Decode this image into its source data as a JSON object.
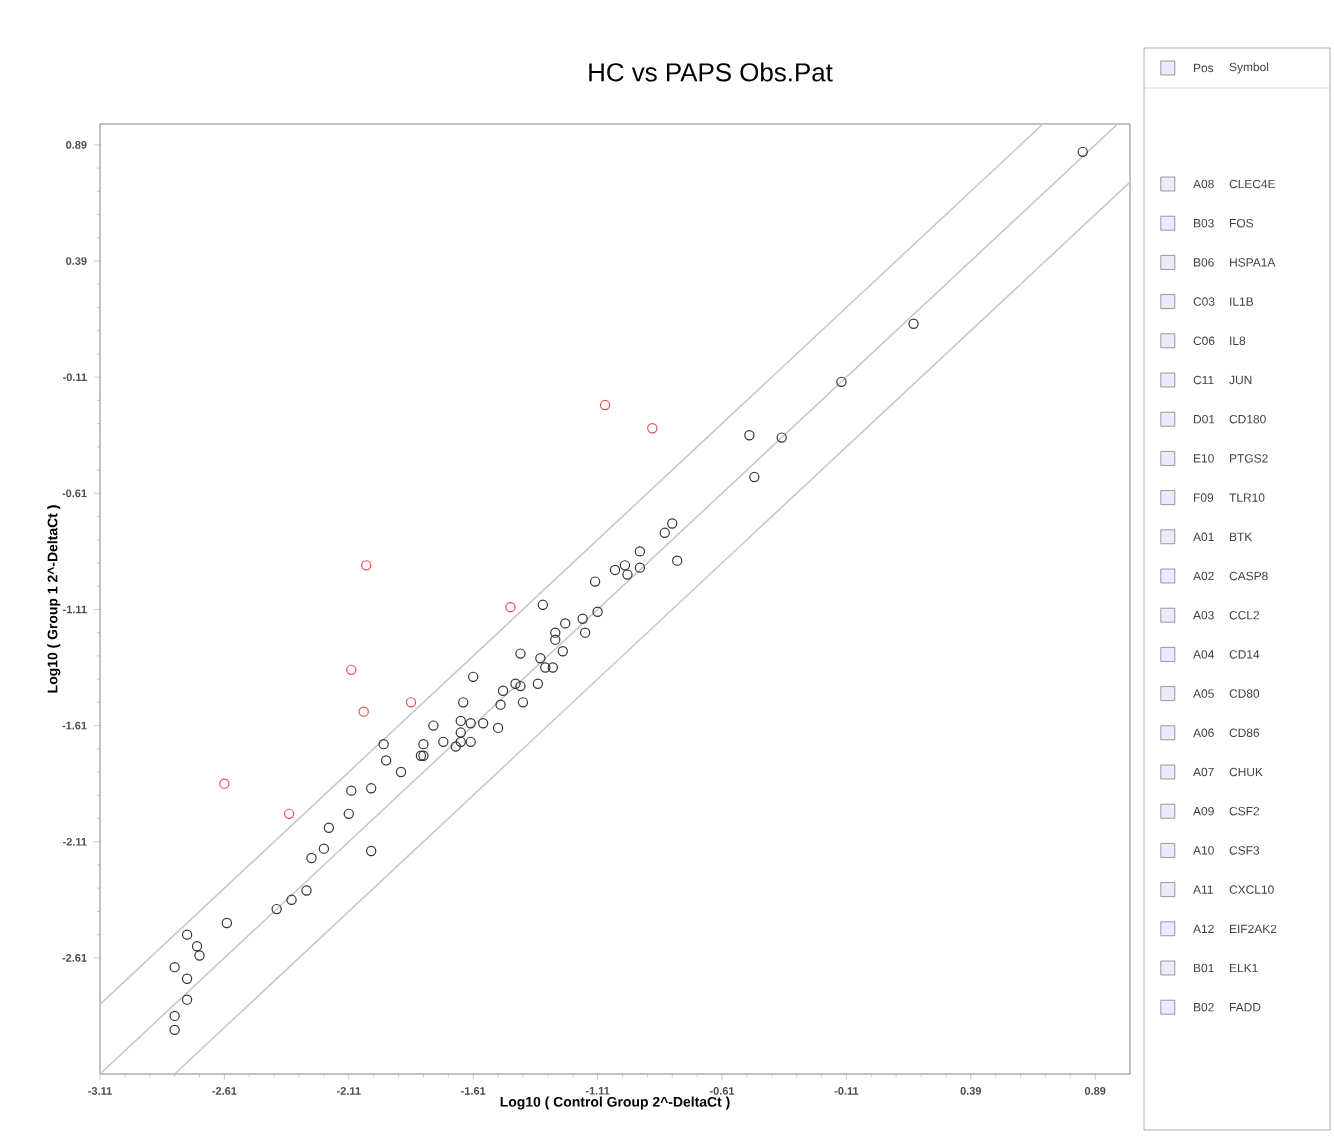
{
  "chart_data": {
    "type": "scatter",
    "title": "HC vs PAPS Obs.Pat",
    "xlabel": "Log10 ( Control Group 2^-DeltaCt )",
    "ylabel": "Log10 ( Group 1 2^-DeltaCt )",
    "xlim": [
      -3.11,
      1.03
    ],
    "ylim": [
      -3.11,
      0.98
    ],
    "xticks": [
      -3.11,
      -2.61,
      -2.11,
      -1.61,
      -1.11,
      -0.61,
      -0.11,
      0.39,
      0.89
    ],
    "yticks": [
      -2.61,
      -2.11,
      -1.61,
      -1.11,
      -0.61,
      -0.11,
      0.39,
      0.89
    ],
    "marker": "circle",
    "series": [
      {
        "type": "line",
        "marker": "none",
        "color": "#c8c8c8",
        "x": [
          -3.11,
          0.98
        ],
        "values": [
          -3.11,
          0.98
        ]
      },
      {
        "type": "line",
        "marker": "none",
        "color": "#c8c8c8",
        "x": [
          -3.11,
          0.68
        ],
        "values": [
          -2.81,
          0.98
        ]
      },
      {
        "type": "line",
        "marker": "none",
        "color": "#c8c8c8",
        "x": [
          -2.81,
          1.03
        ],
        "values": [
          -3.11,
          0.73
        ]
      },
      {
        "color": "#e05050",
        "x": [
          -2.61,
          -2.35,
          -2.1,
          -2.05,
          -1.86,
          -1.46,
          -2.04,
          -1.08,
          -0.89
        ],
        "values": [
          -1.86,
          -1.99,
          -1.37,
          -1.55,
          -1.51,
          -1.1,
          -0.92,
          -0.23,
          -0.33
        ]
      },
      {
        "color": "#333333",
        "x": [
          -0.5,
          -0.37,
          -0.48,
          -1.33,
          -1.12,
          -1.11,
          -1.17,
          -1.24,
          -1.16,
          -1.04,
          -1.0,
          -0.99,
          -0.94,
          -0.94,
          -0.84,
          -0.81,
          -0.79,
          -1.28,
          -1.28,
          -1.25,
          -1.29,
          -1.34,
          -1.32,
          -1.42,
          -1.35,
          -1.42,
          -1.44,
          -1.41,
          -1.49,
          -1.5,
          -1.51,
          -1.61,
          -1.65,
          -1.66,
          -1.62,
          -1.57,
          -1.66,
          -1.62,
          -1.66,
          -1.68,
          -1.73,
          -1.77,
          -1.81,
          -1.81,
          -1.82,
          -1.9,
          -1.97,
          -1.96,
          -2.02,
          -2.1,
          -2.11,
          -2.02,
          -2.19,
          -2.21,
          -2.26,
          -2.28,
          -2.34,
          -2.4,
          -2.6,
          -2.76,
          -2.72,
          -2.71,
          -2.81,
          -2.76,
          -2.76,
          -2.81,
          -2.81,
          0.84,
          0.16,
          -0.13
        ],
        "values": [
          -0.36,
          -0.37,
          -0.54,
          -1.09,
          -0.99,
          -1.12,
          -1.15,
          -1.17,
          -1.21,
          -0.94,
          -0.92,
          -0.96,
          -0.93,
          -0.86,
          -0.78,
          -0.74,
          -0.9,
          -1.21,
          -1.24,
          -1.29,
          -1.36,
          -1.32,
          -1.36,
          -1.3,
          -1.43,
          -1.44,
          -1.43,
          -1.51,
          -1.46,
          -1.52,
          -1.62,
          -1.4,
          -1.51,
          -1.59,
          -1.6,
          -1.6,
          -1.64,
          -1.68,
          -1.68,
          -1.7,
          -1.68,
          -1.61,
          -1.69,
          -1.74,
          -1.74,
          -1.81,
          -1.69,
          -1.76,
          -1.88,
          -1.89,
          -1.99,
          -2.15,
          -2.05,
          -2.14,
          -2.18,
          -2.32,
          -2.36,
          -2.4,
          -2.46,
          -2.51,
          -2.56,
          -2.6,
          -2.65,
          -2.7,
          -2.79,
          -2.86,
          -2.92,
          0.86,
          0.12,
          -0.13
        ]
      }
    ],
    "annotations": [
      "Pos",
      "Symbol",
      "A08",
      "CLEC4E",
      "B03",
      "FOS",
      "B06",
      "HSPA1A",
      "C03",
      "IL1B",
      "C06",
      "IL8",
      "C11",
      "JUN",
      "D01",
      "CD180",
      "E10",
      "PTGS2",
      "F09",
      "TLR10",
      "A01",
      "BTK",
      "A02",
      "CASP8",
      "A03",
      "CCL2",
      "A04",
      "CD14",
      "A05",
      "CD80",
      "A06",
      "CD86",
      "A07",
      "CHUK",
      "A09",
      "CSF2",
      "A10",
      "CSF3",
      "A11",
      "CXCL10",
      "A12",
      "EIF2AK2",
      "B01",
      "ELK1",
      "B02",
      "FADD"
    ]
  }
}
